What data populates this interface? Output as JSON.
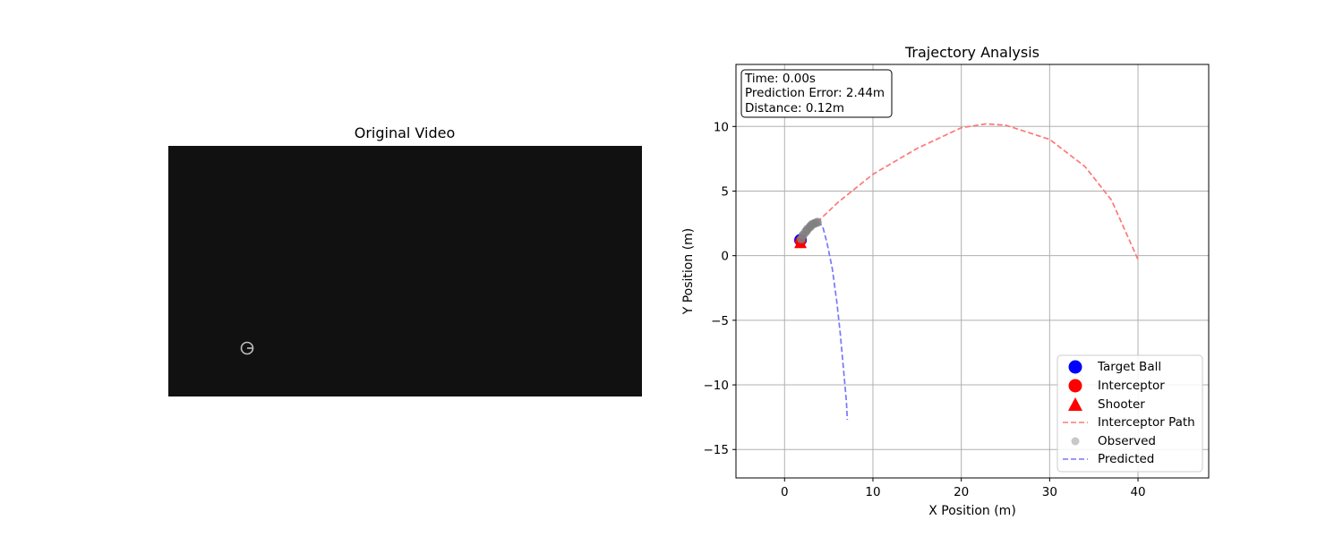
{
  "video_panel": {
    "title": "Original Video",
    "background_color": "#111111"
  },
  "chart_data": {
    "type": "line",
    "title": "Trajectory Analysis",
    "xlabel": "X Position (m)",
    "ylabel": "Y Position (m)",
    "xlim": [
      -5.5,
      48
    ],
    "ylim": [
      -17.2,
      14.8
    ],
    "xticks": [
      0,
      10,
      20,
      30,
      40
    ],
    "yticks": [
      -15,
      -10,
      -5,
      0,
      5,
      10
    ],
    "grid": true,
    "legend_position": "lower-right",
    "info_box": [
      "Time: 0.00s",
      "Prediction Error: 2.44m",
      "Distance: 0.12m"
    ],
    "series": [
      {
        "name": "Target Ball",
        "marker": "circle",
        "color": "#0000ff",
        "points": [
          [
            1.8,
            1.2
          ]
        ]
      },
      {
        "name": "Interceptor",
        "marker": "circle",
        "color": "#ff0000",
        "points": [
          [
            1.8,
            1.1
          ]
        ]
      },
      {
        "name": "Shooter",
        "marker": "triangle",
        "color": "#ff0000",
        "points": [
          [
            1.8,
            1.0
          ]
        ]
      },
      {
        "name": "Interceptor Path",
        "style": "dashed",
        "color": "#ff7777",
        "points": [
          [
            3.7,
            2.6
          ],
          [
            6,
            4.1
          ],
          [
            10,
            6.3
          ],
          [
            15,
            8.3
          ],
          [
            20,
            9.9
          ],
          [
            22.8,
            10.2
          ],
          [
            25,
            10.1
          ],
          [
            30,
            9.0
          ],
          [
            34,
            6.9
          ],
          [
            37,
            4.3
          ],
          [
            40,
            -0.3
          ]
        ]
      },
      {
        "name": "Observed",
        "marker": "circle",
        "color": "#808080",
        "points": [
          [
            1.9,
            1.3
          ],
          [
            2.1,
            1.6
          ],
          [
            2.4,
            1.85
          ],
          [
            2.6,
            2.05
          ],
          [
            2.9,
            2.25
          ],
          [
            3.1,
            2.4
          ],
          [
            3.4,
            2.5
          ],
          [
            3.7,
            2.58
          ]
        ]
      },
      {
        "name": "Predicted",
        "style": "dashed",
        "color": "#7777ff",
        "points": [
          [
            3.7,
            2.6
          ],
          [
            4.3,
            2.3
          ],
          [
            4.8,
            1.0
          ],
          [
            5.4,
            -1.0
          ],
          [
            5.9,
            -3.5
          ],
          [
            6.3,
            -6.0
          ],
          [
            6.7,
            -9.0
          ],
          [
            7.0,
            -11.3
          ],
          [
            7.1,
            -12.7
          ]
        ]
      }
    ]
  }
}
